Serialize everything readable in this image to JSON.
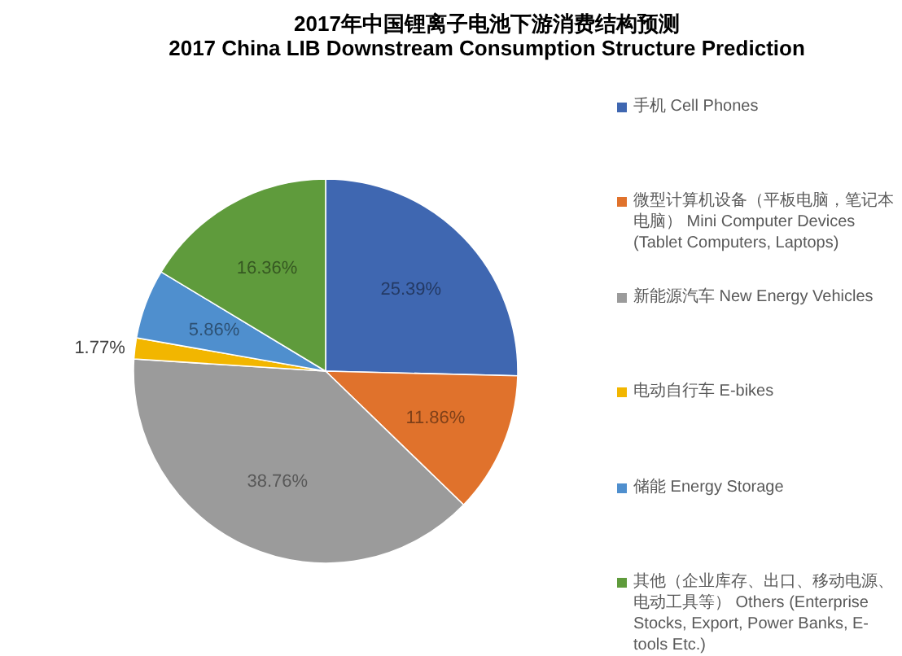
{
  "chart_data": {
    "type": "pie",
    "title": "2017年中国锂离子电池下游消费结构预测",
    "subtitle": "2017 China LIB Downstream Consumption Structure Prediction",
    "categories": [
      "手机 Cell Phones",
      "微型计算机设备（平板电脑，笔记本电脑） Mini Computer Devices (Tablet Computers, Laptops)",
      "新能源汽车 New Energy Vehicles",
      "电动自行车 E-bikes",
      "储能 Energy Storage",
      "其他（企业库存、出口、移动电源、电动工具等） Others (Enterprise Stocks, Export, Power Banks, E-tools Etc.)"
    ],
    "values": [
      25.39,
      11.86,
      38.76,
      1.77,
      5.86,
      16.36
    ],
    "value_labels": [
      "25.39%",
      "11.86%",
      "38.76%",
      "1.77%",
      "5.86%",
      "16.36%"
    ],
    "colors": [
      "#3f67b1",
      "#e0722c",
      "#9b9b9b",
      "#f2b600",
      "#4f8fce",
      "#5f9b3c"
    ],
    "legend": "right"
  }
}
